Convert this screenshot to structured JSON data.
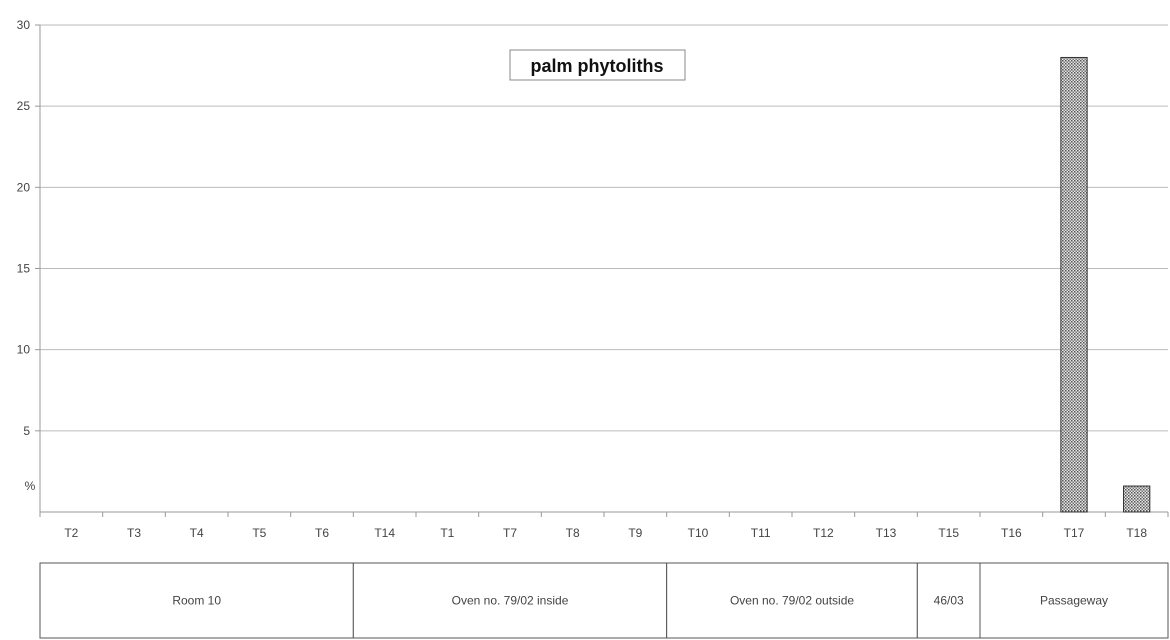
{
  "chart_data": {
    "type": "bar",
    "title": "palm phytoliths",
    "ylabel": "%",
    "xlabel": "",
    "ylim": [
      0,
      30
    ],
    "yticks": [
      5,
      10,
      15,
      20,
      25,
      30
    ],
    "grid": true,
    "categories": [
      "T2",
      "T3",
      "T4",
      "T5",
      "T6",
      "T14",
      "T1",
      "T7",
      "T8",
      "T9",
      "T10",
      "T11",
      "T12",
      "T13",
      "T15",
      "T16",
      "T17",
      "T18"
    ],
    "values": [
      0,
      0,
      0,
      0,
      0,
      0,
      0,
      0,
      0,
      0,
      0,
      0,
      0,
      0,
      0,
      0,
      28,
      1.6
    ],
    "groups": [
      {
        "label": "Room 10",
        "categories": [
          "T2",
          "T3",
          "T4",
          "T5",
          "T6"
        ]
      },
      {
        "label": "Oven no. 79/02 inside",
        "categories": [
          "T14",
          "T1",
          "T7",
          "T8",
          "T9"
        ]
      },
      {
        "label": "Oven no. 79/02 outside",
        "categories": [
          "T10",
          "T11",
          "T12",
          "T13"
        ]
      },
      {
        "label": "46/03",
        "categories": [
          "T15"
        ]
      },
      {
        "label": "Passageway",
        "categories": [
          "T16",
          "T17",
          "T18"
        ]
      }
    ],
    "bar_color": "#bdbdbd",
    "grid_color": "#bbbbbb",
    "axis_color": "#999999"
  }
}
